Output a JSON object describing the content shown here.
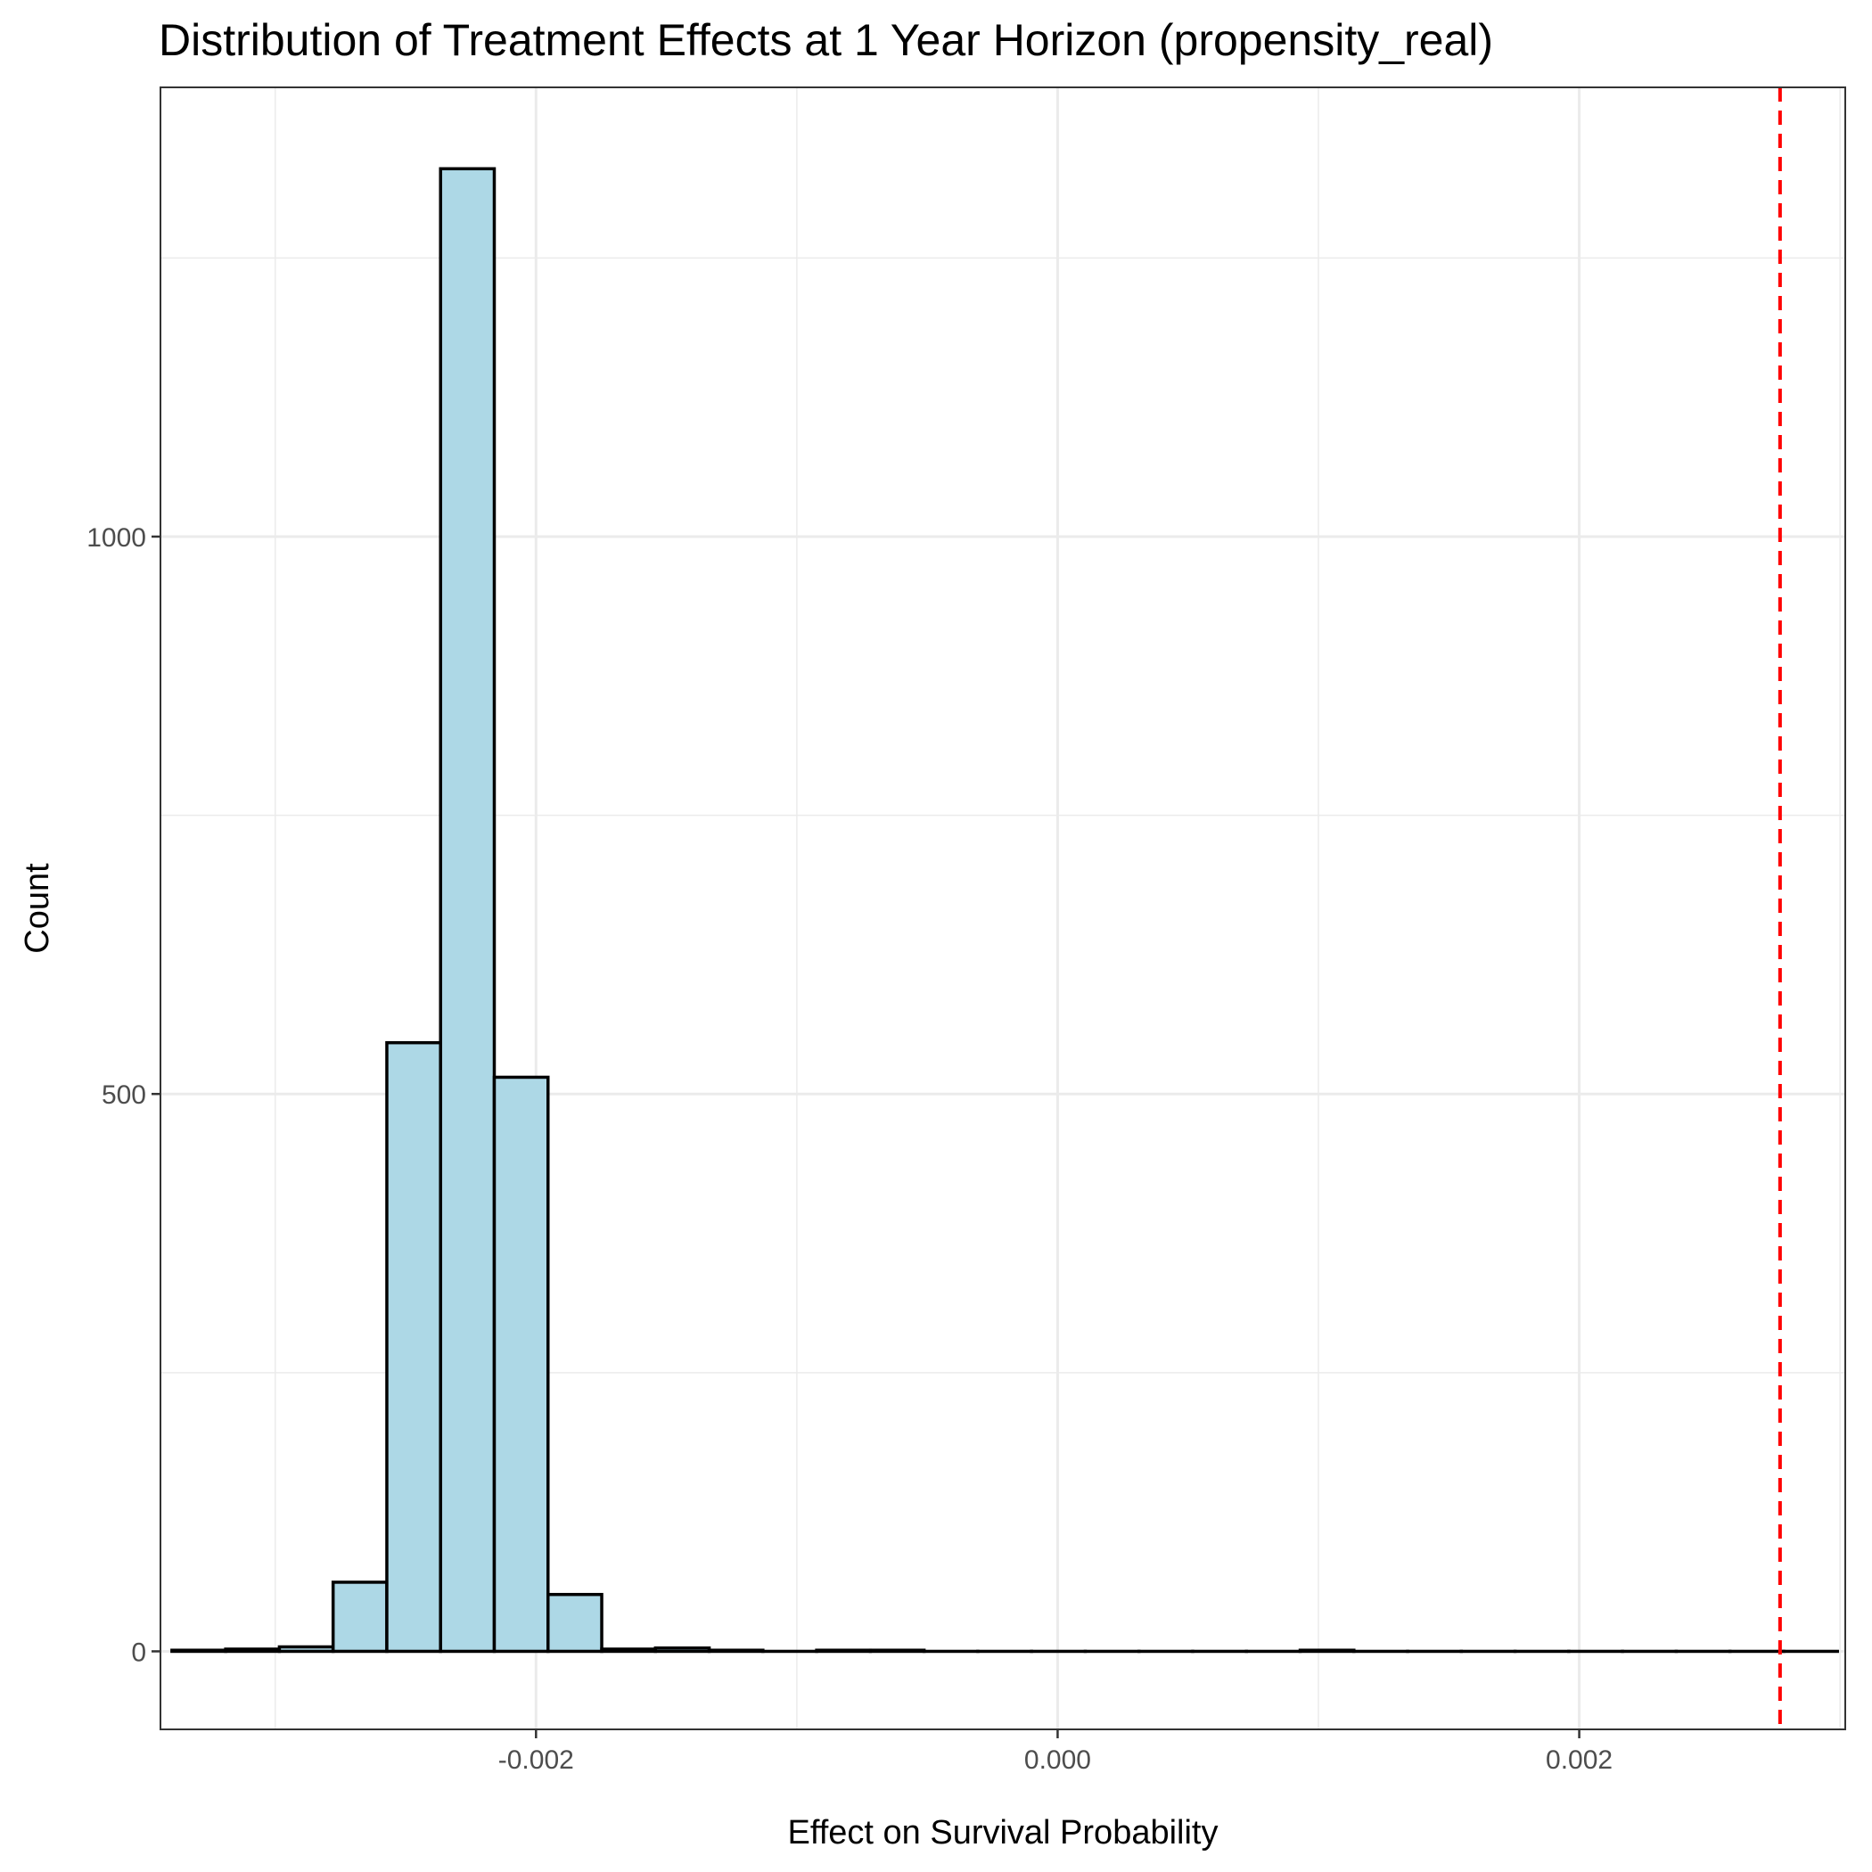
{
  "chart_data": {
    "type": "bar",
    "subtype": "histogram",
    "title": "Distribution of Treatment Effects at 1 Year Horizon (propensity_real)",
    "xlabel": "Effect on Survival Probability",
    "ylabel": "Count",
    "xlim": [
      -0.00344,
      0.00302
    ],
    "ylim": [
      -70,
      1403
    ],
    "x_ticks": [
      {
        "value": -0.002,
        "label": "-0.002"
      },
      {
        "value": 0.0,
        "label": "0.000"
      },
      {
        "value": 0.002,
        "label": "0.002"
      }
    ],
    "y_ticks": [
      {
        "value": 0,
        "label": "0"
      },
      {
        "value": 500,
        "label": "500"
      },
      {
        "value": 1000,
        "label": "1000"
      }
    ],
    "grid": true,
    "bin_width": 0.000206,
    "bin_start": -0.003396,
    "counts": [
      1,
      2,
      4,
      62,
      546,
      1330,
      515,
      51,
      2,
      3,
      1,
      0,
      1,
      1,
      0,
      0,
      0,
      0,
      0,
      0,
      0,
      1,
      0,
      0,
      0,
      0,
      0,
      0,
      0,
      0,
      0
    ],
    "bar_fill": "#add8e6",
    "bar_outline": "#000000",
    "reference_line": {
      "x": 0.00277,
      "color": "#ff0000",
      "style": "dashed"
    }
  }
}
